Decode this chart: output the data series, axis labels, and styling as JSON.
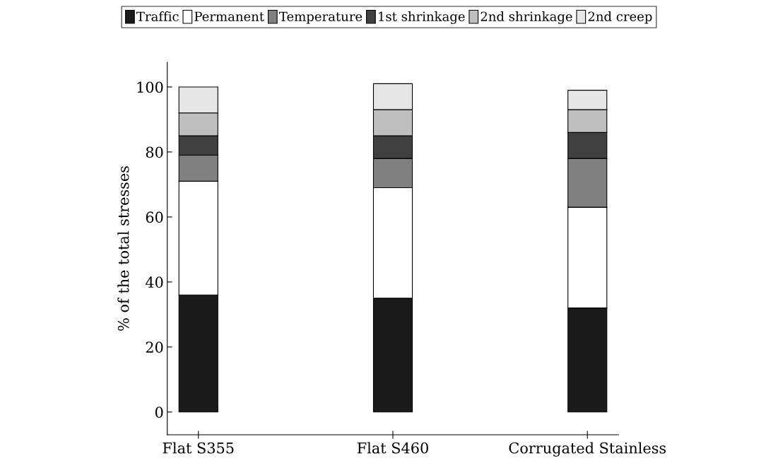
{
  "chart_data": {
    "type": "bar",
    "stacked": true,
    "ylabel": "% of the total stresses",
    "categories": [
      "Flat S355",
      "Flat S460",
      "Corrugated Stainless"
    ],
    "series": [
      {
        "name": "Traffic",
        "color": "#1a1a1a",
        "values": [
          36,
          35,
          32
        ]
      },
      {
        "name": "Permanent",
        "color": "#ffffff",
        "values": [
          35,
          34,
          31
        ]
      },
      {
        "name": "Temperature",
        "color": "#808080",
        "values": [
          8,
          9,
          15
        ]
      },
      {
        "name": "1st shrinkage",
        "color": "#404040",
        "values": [
          6,
          7,
          8
        ]
      },
      {
        "name": "2nd shrinkage",
        "color": "#bfbfbf",
        "values": [
          7,
          8,
          7
        ]
      },
      {
        "name": "2nd creep",
        "color": "#e6e6e6",
        "values": [
          8,
          8,
          6
        ]
      }
    ],
    "ylim": [
      -7,
      107.6
    ],
    "yticks": [
      0,
      20,
      40,
      60,
      80,
      100
    ],
    "grid": false,
    "legend": "top"
  }
}
